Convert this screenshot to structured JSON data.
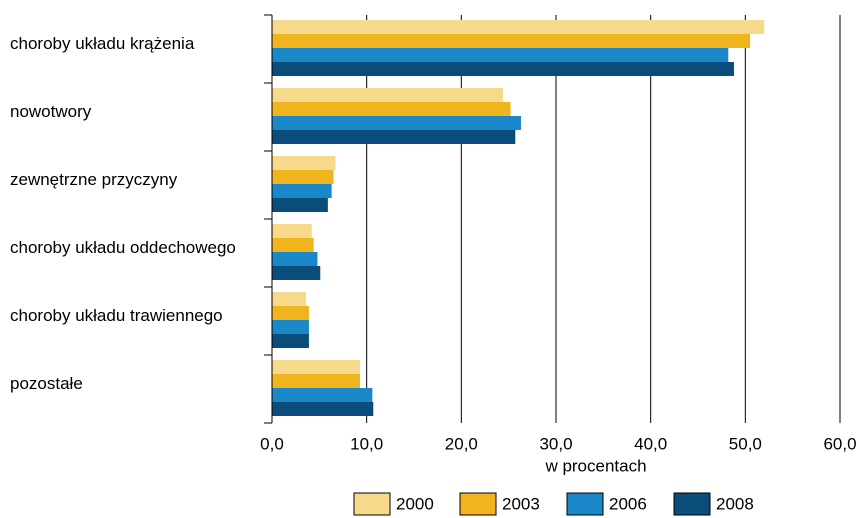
{
  "chart_data": {
    "type": "barh",
    "categories": [
      "choroby układu krążenia",
      "nowotwory",
      "zewnętrzne przyczyny",
      "choroby układu oddechowego",
      "choroby układu trawiennego",
      "pozostałe"
    ],
    "series": [
      {
        "name": "2000",
        "color": "#f7d98b",
        "values": [
          52.0,
          24.4,
          6.7,
          4.2,
          3.6,
          9.3
        ]
      },
      {
        "name": "2003",
        "color": "#f0b41c",
        "values": [
          50.5,
          25.2,
          6.5,
          4.4,
          3.9,
          9.3
        ]
      },
      {
        "name": "2006",
        "color": "#1a87c9",
        "values": [
          48.2,
          26.3,
          6.3,
          4.8,
          3.9,
          10.6
        ]
      },
      {
        "name": "2008",
        "color": "#0a4d7a",
        "values": [
          48.8,
          25.7,
          5.9,
          5.1,
          3.9,
          10.7
        ]
      }
    ],
    "xlabel": "w procentach",
    "xlim": [
      0,
      60
    ],
    "xticks": [
      {
        "value": 0,
        "label": "0,0"
      },
      {
        "value": 10,
        "label": "10,0"
      },
      {
        "value": 20,
        "label": "20,0"
      },
      {
        "value": 30,
        "label": "30,0"
      },
      {
        "value": 40,
        "label": "40,0"
      },
      {
        "value": 50,
        "label": "50,0"
      },
      {
        "value": 60,
        "label": "60,0"
      }
    ],
    "grid": true,
    "legend": "bottom"
  }
}
